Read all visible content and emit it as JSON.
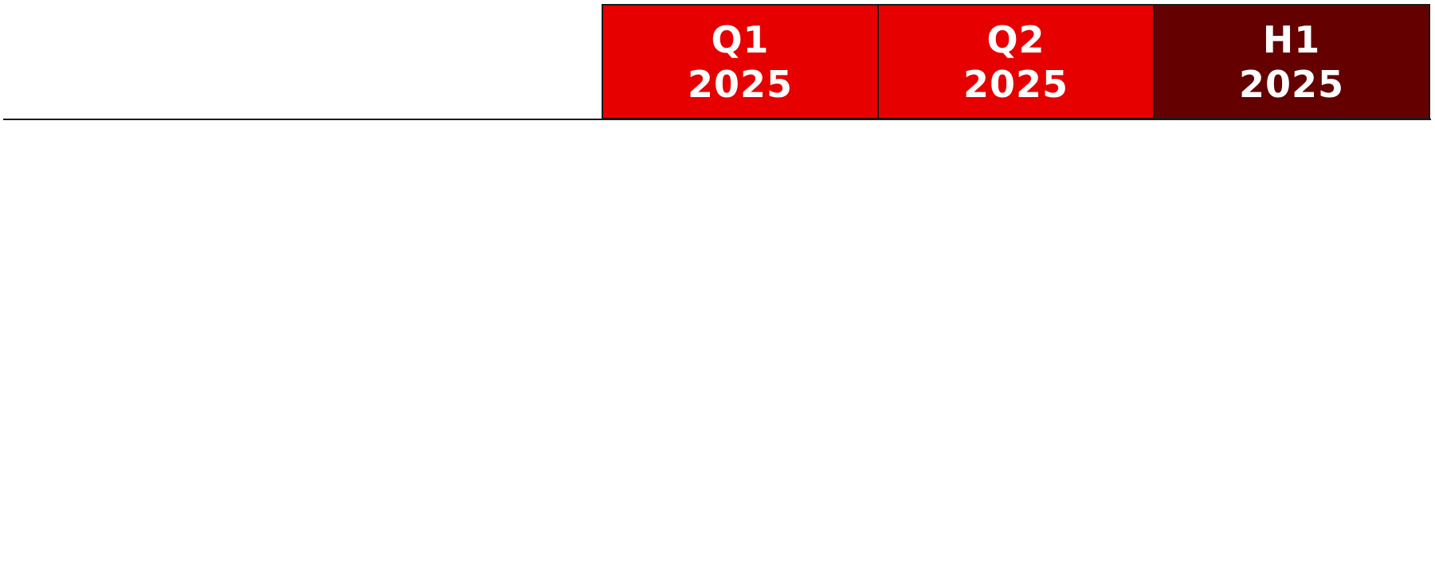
{
  "header": {
    "periods": [
      {
        "label": "Q1",
        "year": "2025",
        "color": "#e60000"
      },
      {
        "label": "Q2",
        "year": "2025",
        "color": "#e60000"
      },
      {
        "label": "H1",
        "year": "2025",
        "color": "#650000"
      }
    ]
  }
}
